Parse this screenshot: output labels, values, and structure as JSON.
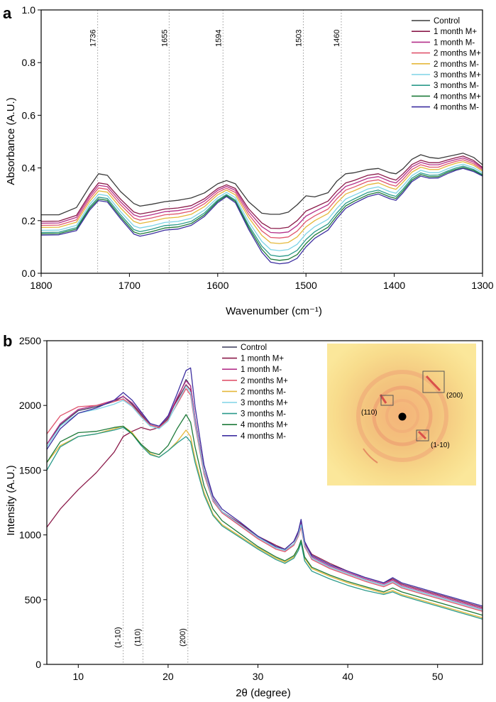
{
  "chart_data": [
    {
      "panel_label": "a",
      "type": "line",
      "xlabel": "Wavenumber (cm⁻¹)",
      "ylabel": "Absorbance (A.U.)",
      "xlim": [
        1800,
        1300
      ],
      "ylim": [
        0.0,
        1.0
      ],
      "x_reversed": true,
      "xticks": [
        1800,
        1700,
        1600,
        1500,
        1400,
        1300
      ],
      "yticks": [
        0.0,
        0.2,
        0.4,
        0.6,
        0.8,
        1.0
      ],
      "tick_decimals": 1,
      "legend_position": "top-right",
      "annotations": [
        {
          "x": 1736,
          "label": "1736"
        },
        {
          "x": 1655,
          "label": "1655"
        },
        {
          "x": 1594,
          "label": "1594"
        },
        {
          "x": 1503,
          "label": "1503"
        },
        {
          "x": 1460,
          "label": "1460"
        }
      ],
      "x": [
        1800,
        1780,
        1760,
        1745,
        1735,
        1725,
        1710,
        1695,
        1688,
        1675,
        1660,
        1645,
        1630,
        1615,
        1600,
        1590,
        1580,
        1565,
        1550,
        1540,
        1530,
        1520,
        1510,
        1500,
        1490,
        1475,
        1465,
        1455,
        1445,
        1430,
        1418,
        1405,
        1398,
        1390,
        1380,
        1370,
        1360,
        1350,
        1340,
        1330,
        1322,
        1310,
        1300
      ],
      "series": [
        {
          "name": "Control",
          "color": "#3a3a3a",
          "values": [
            0.222,
            0.222,
            0.25,
            0.33,
            0.378,
            0.372,
            0.31,
            0.265,
            0.255,
            0.262,
            0.272,
            0.277,
            0.286,
            0.305,
            0.34,
            0.352,
            0.34,
            0.272,
            0.228,
            0.224,
            0.224,
            0.232,
            0.26,
            0.294,
            0.29,
            0.306,
            0.35,
            0.378,
            0.382,
            0.394,
            0.398,
            0.382,
            0.378,
            0.397,
            0.433,
            0.45,
            0.44,
            0.436,
            0.443,
            0.45,
            0.456,
            0.44,
            0.412
          ]
        },
        {
          "name": "1 month M+",
          "color": "#8b1a4a",
          "values": [
            0.197,
            0.198,
            0.22,
            0.3,
            0.343,
            0.338,
            0.281,
            0.233,
            0.225,
            0.233,
            0.244,
            0.248,
            0.257,
            0.283,
            0.322,
            0.336,
            0.322,
            0.245,
            0.191,
            0.171,
            0.17,
            0.175,
            0.2,
            0.236,
            0.251,
            0.274,
            0.312,
            0.343,
            0.353,
            0.372,
            0.378,
            0.36,
            0.354,
            0.378,
            0.413,
            0.429,
            0.42,
            0.42,
            0.43,
            0.439,
            0.445,
            0.428,
            0.402
          ]
        },
        {
          "name": "1 month M-",
          "color": "#b5308a",
          "values": [
            0.19,
            0.191,
            0.212,
            0.292,
            0.334,
            0.329,
            0.271,
            0.222,
            0.214,
            0.222,
            0.234,
            0.238,
            0.247,
            0.274,
            0.315,
            0.33,
            0.315,
            0.235,
            0.177,
            0.155,
            0.153,
            0.157,
            0.181,
            0.217,
            0.235,
            0.26,
            0.298,
            0.33,
            0.341,
            0.361,
            0.367,
            0.349,
            0.343,
            0.368,
            0.404,
            0.421,
            0.412,
            0.412,
            0.423,
            0.432,
            0.438,
            0.422,
            0.398
          ]
        },
        {
          "name": "2 months M+",
          "color": "#e0566e",
          "values": [
            0.182,
            0.183,
            0.203,
            0.283,
            0.324,
            0.319,
            0.26,
            0.21,
            0.202,
            0.21,
            0.222,
            0.226,
            0.236,
            0.264,
            0.307,
            0.323,
            0.307,
            0.224,
            0.161,
            0.136,
            0.134,
            0.138,
            0.16,
            0.197,
            0.218,
            0.244,
            0.283,
            0.316,
            0.328,
            0.349,
            0.355,
            0.337,
            0.331,
            0.357,
            0.394,
            0.412,
            0.403,
            0.403,
            0.415,
            0.425,
            0.431,
            0.416,
            0.393
          ]
        },
        {
          "name": "2 months M-",
          "color": "#e5b83a",
          "values": [
            0.174,
            0.175,
            0.194,
            0.273,
            0.313,
            0.308,
            0.248,
            0.197,
            0.189,
            0.197,
            0.209,
            0.213,
            0.224,
            0.253,
            0.298,
            0.316,
            0.298,
            0.212,
            0.144,
            0.116,
            0.113,
            0.117,
            0.138,
            0.176,
            0.2,
            0.227,
            0.267,
            0.301,
            0.314,
            0.336,
            0.343,
            0.325,
            0.319,
            0.346,
            0.384,
            0.403,
            0.394,
            0.394,
            0.407,
            0.418,
            0.424,
            0.41,
            0.388
          ]
        },
        {
          "name": "3 months M+",
          "color": "#7ed3e6",
          "values": [
            0.163,
            0.164,
            0.182,
            0.262,
            0.3,
            0.295,
            0.234,
            0.18,
            0.172,
            0.18,
            0.193,
            0.197,
            0.209,
            0.24,
            0.287,
            0.307,
            0.287,
            0.196,
            0.121,
            0.09,
            0.086,
            0.09,
            0.11,
            0.15,
            0.177,
            0.205,
            0.246,
            0.282,
            0.297,
            0.32,
            0.328,
            0.31,
            0.304,
            0.332,
            0.371,
            0.391,
            0.382,
            0.382,
            0.396,
            0.408,
            0.414,
            0.401,
            0.381
          ]
        },
        {
          "name": "3 months M-",
          "color": "#2a9a8a",
          "values": [
            0.155,
            0.156,
            0.173,
            0.252,
            0.289,
            0.284,
            0.222,
            0.166,
            0.158,
            0.167,
            0.181,
            0.185,
            0.197,
            0.229,
            0.278,
            0.299,
            0.278,
            0.183,
            0.103,
            0.069,
            0.064,
            0.068,
            0.087,
            0.128,
            0.158,
            0.187,
            0.229,
            0.266,
            0.283,
            0.307,
            0.316,
            0.298,
            0.292,
            0.32,
            0.361,
            0.381,
            0.372,
            0.373,
            0.388,
            0.4,
            0.407,
            0.394,
            0.375
          ]
        },
        {
          "name": "4 months M+",
          "color": "#1e7a3a",
          "values": [
            0.15,
            0.151,
            0.168,
            0.246,
            0.282,
            0.277,
            0.214,
            0.157,
            0.149,
            0.158,
            0.172,
            0.176,
            0.189,
            0.222,
            0.273,
            0.295,
            0.273,
            0.175,
            0.091,
            0.054,
            0.049,
            0.053,
            0.071,
            0.113,
            0.145,
            0.175,
            0.218,
            0.256,
            0.274,
            0.298,
            0.308,
            0.29,
            0.284,
            0.313,
            0.354,
            0.375,
            0.366,
            0.367,
            0.383,
            0.395,
            0.402,
            0.39,
            0.372
          ]
        },
        {
          "name": "4 months M-",
          "color": "#3d2fa0",
          "values": [
            0.145,
            0.146,
            0.162,
            0.24,
            0.276,
            0.271,
            0.207,
            0.149,
            0.141,
            0.15,
            0.164,
            0.168,
            0.182,
            0.216,
            0.268,
            0.291,
            0.268,
            0.167,
            0.08,
            0.042,
            0.036,
            0.04,
            0.057,
            0.1,
            0.133,
            0.164,
            0.208,
            0.247,
            0.266,
            0.291,
            0.301,
            0.283,
            0.277,
            0.306,
            0.348,
            0.369,
            0.361,
            0.362,
            0.378,
            0.391,
            0.398,
            0.386,
            0.369
          ]
        }
      ]
    },
    {
      "panel_label": "b",
      "type": "line",
      "xlabel": "2θ (degree)",
      "ylabel": "Intensity (A.U.)",
      "xlim": [
        6.5,
        55
      ],
      "ylim": [
        0,
        2500
      ],
      "x_reversed": false,
      "xticks": [
        10,
        20,
        30,
        40,
        50
      ],
      "yticks": [
        0,
        500,
        1000,
        1500,
        2000,
        2500
      ],
      "tick_decimals": 0,
      "legend_position": "top-center",
      "annotations": [
        {
          "x": 15.0,
          "label": "(1-10)"
        },
        {
          "x": 17.2,
          "label": "(110)"
        },
        {
          "x": 22.2,
          "label": "(200)"
        }
      ],
      "x": [
        6.5,
        8,
        10,
        12,
        14,
        15,
        16,
        17,
        18,
        19,
        20,
        21,
        22,
        22.5,
        23,
        24,
        25,
        26,
        28,
        30,
        32,
        33,
        34,
        34.5,
        34.8,
        35.2,
        36,
        38,
        40,
        42,
        44,
        45,
        46,
        48,
        50,
        52,
        54,
        55
      ],
      "series": [
        {
          "name": "Control",
          "color": "#3a3a5a",
          "values": [
            1700,
            1850,
            1960,
            1990,
            2030,
            2070,
            2010,
            1930,
            1850,
            1830,
            1900,
            2050,
            2200,
            2150,
            1900,
            1500,
            1280,
            1180,
            1080,
            980,
            900,
            880,
            930,
            1000,
            1080,
            920,
            820,
            750,
            700,
            650,
            610,
            640,
            600,
            560,
            520,
            480,
            440,
            420
          ]
        },
        {
          "name": "1 month M+",
          "color": "#8b1a4a",
          "values": [
            1060,
            1200,
            1350,
            1480,
            1640,
            1760,
            1800,
            1830,
            1810,
            1830,
            1920,
            2040,
            2160,
            2120,
            1880,
            1490,
            1270,
            1180,
            1090,
            990,
            920,
            890,
            950,
            1020,
            1100,
            940,
            850,
            780,
            720,
            670,
            630,
            660,
            620,
            580,
            540,
            500,
            460,
            440
          ]
        },
        {
          "name": "1 month M-",
          "color": "#b5308a",
          "values": [
            1700,
            1860,
            1970,
            2000,
            2040,
            2070,
            2020,
            1940,
            1860,
            1840,
            1910,
            2060,
            2190,
            2150,
            1900,
            1500,
            1280,
            1180,
            1080,
            980,
            900,
            880,
            930,
            1010,
            1090,
            930,
            830,
            760,
            710,
            660,
            620,
            650,
            610,
            570,
            530,
            490,
            450,
            430
          ]
        },
        {
          "name": "2 months M+",
          "color": "#e0566e",
          "values": [
            1780,
            1920,
            1990,
            2000,
            2030,
            2050,
            2000,
            1920,
            1850,
            1830,
            1890,
            2010,
            2130,
            2080,
            1850,
            1470,
            1260,
            1170,
            1070,
            970,
            890,
            870,
            920,
            990,
            1060,
            910,
            810,
            740,
            690,
            640,
            600,
            630,
            590,
            550,
            510,
            470,
            430,
            410
          ]
        },
        {
          "name": "2 months M-",
          "color": "#e5b83a",
          "values": [
            1560,
            1690,
            1760,
            1780,
            1820,
            1840,
            1790,
            1700,
            1630,
            1600,
            1650,
            1720,
            1810,
            1760,
            1590,
            1330,
            1160,
            1080,
            990,
            900,
            820,
            790,
            830,
            900,
            950,
            820,
            740,
            680,
            630,
            590,
            550,
            570,
            540,
            500,
            460,
            420,
            380,
            360
          ]
        },
        {
          "name": "3 months M+",
          "color": "#7ed3e6",
          "values": [
            1680,
            1840,
            1940,
            1970,
            2010,
            2040,
            1990,
            1910,
            1840,
            1820,
            1880,
            2020,
            2150,
            2100,
            1870,
            1490,
            1270,
            1180,
            1080,
            980,
            900,
            880,
            930,
            1000,
            1080,
            920,
            820,
            750,
            700,
            650,
            610,
            640,
            600,
            560,
            520,
            480,
            440,
            420
          ]
        },
        {
          "name": "3 months M-",
          "color": "#2a9a8a",
          "values": [
            1500,
            1680,
            1760,
            1780,
            1810,
            1830,
            1780,
            1690,
            1620,
            1600,
            1650,
            1710,
            1760,
            1720,
            1560,
            1310,
            1150,
            1070,
            980,
            890,
            810,
            780,
            820,
            880,
            940,
            800,
            720,
            660,
            610,
            570,
            540,
            560,
            530,
            490,
            450,
            410,
            370,
            350
          ]
        },
        {
          "name": "4 months M+",
          "color": "#1e7a3a",
          "values": [
            1560,
            1720,
            1790,
            1800,
            1830,
            1840,
            1780,
            1700,
            1640,
            1620,
            1690,
            1820,
            1930,
            1870,
            1680,
            1380,
            1200,
            1110,
            1010,
            910,
            830,
            800,
            840,
            900,
            960,
            830,
            750,
            690,
            640,
            600,
            560,
            590,
            560,
            520,
            480,
            440,
            400,
            380
          ]
        },
        {
          "name": "4 months M-",
          "color": "#3d2fa0",
          "values": [
            1660,
            1820,
            1940,
            1980,
            2040,
            2100,
            2040,
            1950,
            1860,
            1840,
            1920,
            2090,
            2270,
            2290,
            1990,
            1540,
            1300,
            1200,
            1100,
            990,
            910,
            890,
            950,
            1030,
            1120,
            950,
            840,
            770,
            720,
            670,
            630,
            670,
            630,
            590,
            550,
            510,
            470,
            450
          ]
        }
      ],
      "inset": {
        "labels": [
          {
            "id": "200",
            "text": "(200)"
          },
          {
            "id": "110",
            "text": "(110)"
          },
          {
            "id": "1-10",
            "text": "(1-10)"
          }
        ],
        "background": "#fbe79a",
        "ring_color": "#f0a070"
      }
    }
  ],
  "colors": {
    "axis": "#000000",
    "reference_line": "#9a9a9a"
  }
}
